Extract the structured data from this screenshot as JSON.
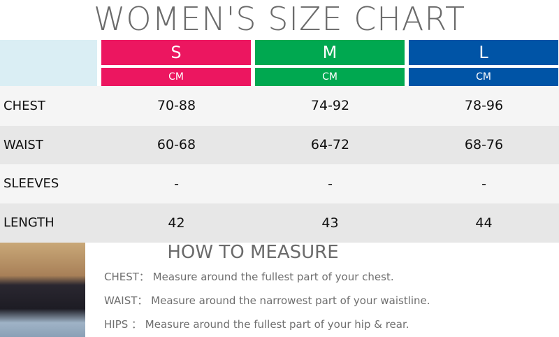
{
  "title": "WOMEN'S SIZE CHART",
  "colors": {
    "S": "#ec1660",
    "M": "#00a850",
    "L": "#0054a6"
  },
  "sizes": [
    {
      "label": "S",
      "unit": "CM"
    },
    {
      "label": "M",
      "unit": "CM"
    },
    {
      "label": "L",
      "unit": "CM"
    }
  ],
  "rows": [
    {
      "label": "CHEST",
      "values": [
        "70-88",
        "74-92",
        "78-96"
      ]
    },
    {
      "label": "WAIST",
      "values": [
        "60-68",
        "64-72",
        "68-76"
      ]
    },
    {
      "label": "SLEEVES",
      "values": [
        "-",
        "-",
        "-"
      ]
    },
    {
      "label": "LENGTH",
      "values": [
        "42",
        "43",
        "44"
      ]
    }
  ],
  "how": {
    "title": "HOW TO MEASURE",
    "lines": [
      "CHEST： Measure around the fullest part of your chest.",
      "WAIST： Measure around the narrowest part of your waistline.",
      "HIPS   ： Measure around the fullest part of your hip & rear."
    ]
  }
}
